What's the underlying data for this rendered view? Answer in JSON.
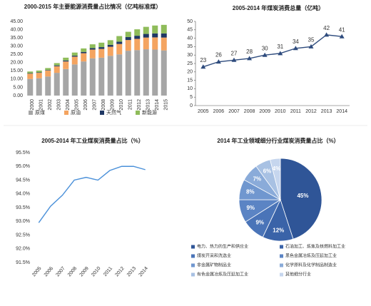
{
  "chart_data": [
    {
      "type": "bar",
      "title": "2000-2015 年主要能源消费量占比情况（亿吨标准煤）",
      "categories": [
        "2000",
        "2001",
        "2002",
        "2003",
        "2004",
        "2005",
        "2006",
        "2007",
        "2008",
        "2009",
        "2010",
        "2011",
        "2012",
        "2013",
        "2014",
        "2015"
      ],
      "series": [
        {
          "name": "原煤",
          "color": "#a6a6a6",
          "values": [
            10.1,
            10.5,
            11.6,
            13.8,
            16.1,
            18.9,
            20.7,
            22.6,
            23.0,
            24.1,
            25.0,
            27.2,
            27.6,
            28.1,
            27.9,
            27.4
          ]
        },
        {
          "name": "原油",
          "color": "#f4a460",
          "values": [
            3.2,
            3.3,
            3.6,
            4.0,
            4.6,
            4.7,
            5.0,
            5.3,
            5.3,
            5.5,
            6.3,
            6.5,
            6.8,
            7.1,
            7.4,
            7.8
          ]
        },
        {
          "name": "天然气",
          "color": "#1f3864",
          "values": [
            0.3,
            0.3,
            0.3,
            0.5,
            0.6,
            0.6,
            0.8,
            0.9,
            1.1,
            1.2,
            1.4,
            1.8,
            1.9,
            2.2,
            2.4,
            2.5
          ]
        },
        {
          "name": "新能源",
          "color": "#8fbc5a",
          "values": [
            1.0,
            1.1,
            1.2,
            1.4,
            1.7,
            1.9,
            2.1,
            2.3,
            2.7,
            2.8,
            3.4,
            3.2,
            3.9,
            4.3,
            4.8,
            5.2
          ]
        }
      ],
      "ylim": [
        0,
        45
      ],
      "yticks": [
        {
          "value": 0,
          "label": "0.00"
        },
        {
          "value": 5,
          "label": "5.00"
        },
        {
          "value": 10,
          "label": "10.00"
        },
        {
          "value": 15,
          "label": "15.00"
        },
        {
          "value": 20,
          "label": "20.00"
        },
        {
          "value": 25,
          "label": "25.00"
        },
        {
          "value": 30,
          "label": "30.00"
        },
        {
          "value": 35,
          "label": "35.00"
        },
        {
          "value": 40,
          "label": "40.00"
        },
        {
          "value": 45,
          "label": "45.00"
        }
      ]
    },
    {
      "type": "line",
      "title": "2005-2014 年煤炭消费总量（亿吨）",
      "categories": [
        "2005",
        "2006",
        "2007",
        "2008",
        "2009",
        "2010",
        "2011",
        "2012",
        "2013",
        "2014"
      ],
      "series": [
        {
          "color": "#2e4b7d",
          "values": [
            23,
            26,
            27,
            28,
            30,
            31,
            34,
            35,
            42,
            41
          ]
        }
      ],
      "ylim": [
        0,
        50
      ],
      "yticks": [
        0,
        5,
        10,
        15,
        20,
        25,
        30,
        35,
        40,
        45,
        50
      ]
    },
    {
      "type": "line",
      "title": "2005-2014 年工业煤炭消费量占比（%）",
      "categories": [
        "2005",
        "2006",
        "2007",
        "2008",
        "2009",
        "2010",
        "2011",
        "2012",
        "2013",
        "2014"
      ],
      "series": [
        {
          "color": "#4a90d9",
          "values": [
            92.95,
            93.55,
            93.95,
            94.5,
            94.6,
            94.5,
            94.85,
            95.0,
            95.0,
            94.88
          ]
        }
      ],
      "ylim": [
        91.5,
        95.5
      ],
      "yticks": [
        {
          "value": 91.5,
          "label": "91.5%"
        },
        {
          "value": 92.0,
          "label": "92.0%"
        },
        {
          "value": 92.5,
          "label": "92.5%"
        },
        {
          "value": 93.0,
          "label": "93.0%"
        },
        {
          "value": 93.5,
          "label": "93.5%"
        },
        {
          "value": 94.0,
          "label": "94.0%"
        },
        {
          "value": 94.5,
          "label": "94.5%"
        },
        {
          "value": 95.0,
          "label": "95.0%"
        },
        {
          "value": 95.5,
          "label": "95.5%"
        }
      ]
    },
    {
      "type": "pie",
      "title": "2014 年工业领域细分行业煤炭消费量占比（%）",
      "categories": [
        "电力、热力的生产和供应业",
        "石油加工、炼焦及核燃料加工业",
        "煤炭开采和洗选业",
        "黑色金属冶炼及压延加工业",
        "非金属矿物制品业",
        "化学原料及化学制品制造业",
        "有色金属冶炼及压延加工业",
        "其他细分行业"
      ],
      "values": [
        45,
        12,
        9,
        9,
        8,
        7,
        6,
        4
      ],
      "value_labels": [
        "45%",
        "12%",
        "9%",
        "9%",
        "8%",
        "7%",
        "6%",
        "4%"
      ],
      "colors": [
        "#2f5597",
        "#3a63a8",
        "#4a74b8",
        "#5b84c4",
        "#7097cf",
        "#8aabd9",
        "#a8c1e3",
        "#c6d6ee"
      ]
    }
  ]
}
